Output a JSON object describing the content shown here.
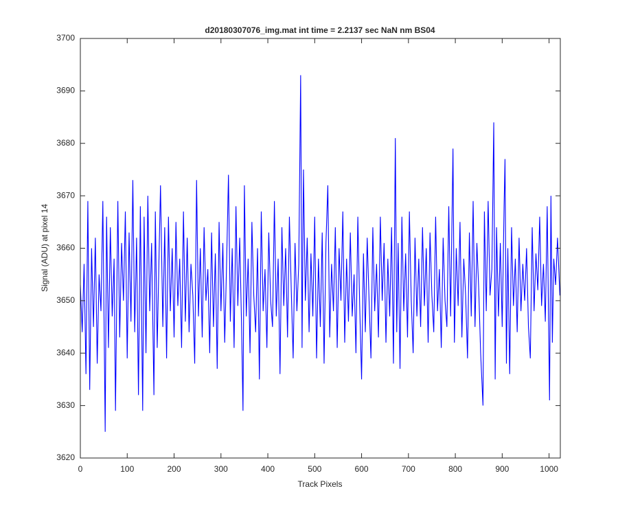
{
  "chart_data": {
    "type": "line",
    "title": "d20180307076_img.mat int time = 2.2137 sec  NaN nm BS04",
    "xlabel": "Track Pixels",
    "ylabel": "Signal (ADU) at pixel 14",
    "color": "#0000ff",
    "xlim": [
      0,
      1024
    ],
    "ylim": [
      3620,
      3700
    ],
    "xticks": [
      0,
      100,
      200,
      300,
      400,
      500,
      600,
      700,
      800,
      900,
      1000
    ],
    "yticks": [
      3620,
      3630,
      3640,
      3650,
      3660,
      3670,
      3680,
      3690,
      3700
    ],
    "grid": false,
    "x": [
      0,
      4,
      8,
      12,
      16,
      20,
      24,
      28,
      32,
      36,
      40,
      44,
      48,
      53,
      56,
      60,
      64,
      68,
      72,
      75,
      80,
      84,
      88,
      92,
      96,
      100,
      104,
      108,
      112,
      116,
      120,
      124,
      128,
      133,
      136,
      140,
      144,
      148,
      152,
      157,
      160,
      164,
      168,
      171,
      176,
      180,
      184,
      188,
      192,
      196,
      200,
      204,
      208,
      212,
      216,
      220,
      224,
      228,
      232,
      236,
      240,
      244,
      248,
      252,
      256,
      260,
      264,
      268,
      272,
      276,
      280,
      284,
      288,
      292,
      296,
      300,
      304,
      308,
      312,
      316,
      320,
      324,
      328,
      332,
      336,
      340,
      344,
      347,
      350,
      354,
      358,
      362,
      366,
      370,
      374,
      378,
      382,
      386,
      390,
      394,
      398,
      402,
      406,
      410,
      414,
      418,
      422,
      426,
      430,
      434,
      438,
      442,
      446,
      450,
      454,
      458,
      462,
      466,
      470,
      473,
      476,
      480,
      484,
      488,
      492,
      496,
      500,
      504,
      508,
      512,
      516,
      520,
      524,
      528,
      532,
      536,
      540,
      544,
      548,
      552,
      556,
      560,
      564,
      568,
      572,
      576,
      580,
      584,
      588,
      592,
      596,
      600,
      604,
      608,
      612,
      616,
      620,
      624,
      628,
      632,
      636,
      640,
      644,
      648,
      652,
      656,
      660,
      664,
      668,
      672,
      675,
      678,
      682,
      686,
      690,
      694,
      698,
      702,
      706,
      710,
      714,
      718,
      722,
      726,
      730,
      734,
      738,
      742,
      746,
      750,
      754,
      758,
      762,
      766,
      770,
      774,
      778,
      782,
      786,
      790,
      795,
      798,
      802,
      806,
      810,
      814,
      818,
      822,
      826,
      830,
      834,
      838,
      842,
      846,
      850,
      854,
      859,
      862,
      866,
      870,
      874,
      878,
      882,
      885,
      888,
      892,
      896,
      900,
      904,
      906,
      909,
      912,
      916,
      920,
      924,
      928,
      932,
      936,
      940,
      944,
      948,
      952,
      956,
      960,
      964,
      968,
      972,
      976,
      980,
      984,
      988,
      992,
      996,
      1001,
      1004,
      1007,
      1010,
      1014,
      1018,
      1023
    ],
    "values": [
      3653,
      3644,
      3657,
      3636,
      3669,
      3633,
      3660,
      3645,
      3662,
      3638,
      3655,
      3648,
      3669,
      3625,
      3666,
      3641,
      3664,
      3647,
      3658,
      3629,
      3669,
      3643,
      3661,
      3650,
      3667,
      3639,
      3663,
      3646,
      3673,
      3644,
      3662,
      3632,
      3668,
      3629,
      3666,
      3640,
      3670,
      3648,
      3661,
      3632,
      3667,
      3641,
      3659,
      3672,
      3645,
      3664,
      3639,
      3666,
      3648,
      3660,
      3643,
      3665,
      3649,
      3658,
      3641,
      3667,
      3646,
      3662,
      3644,
      3657,
      3651,
      3638,
      3673,
      3647,
      3660,
      3643,
      3664,
      3650,
      3656,
      3640,
      3663,
      3645,
      3659,
      3637,
      3665,
      3648,
      3661,
      3642,
      3657,
      3674,
      3646,
      3660,
      3641,
      3668,
      3649,
      3662,
      3645,
      3629,
      3672,
      3647,
      3658,
      3640,
      3665,
      3651,
      3644,
      3660,
      3635,
      3667,
      3648,
      3656,
      3641,
      3663,
      3650,
      3645,
      3669,
      3647,
      3658,
      3636,
      3664,
      3649,
      3660,
      3643,
      3666,
      3652,
      3639,
      3661,
      3648,
      3657,
      3693,
      3641,
      3675,
      3650,
      3662,
      3644,
      3659,
      3647,
      3666,
      3639,
      3658,
      3645,
      3663,
      3638,
      3661,
      3672,
      3643,
      3657,
      3648,
      3664,
      3641,
      3660,
      3650,
      3667,
      3642,
      3658,
      3646,
      3663,
      3647,
      3655,
      3640,
      3666,
      3649,
      3635,
      3659,
      3644,
      3662,
      3650,
      3639,
      3664,
      3648,
      3657,
      3643,
      3666,
      3650,
      3661,
      3642,
      3658,
      3647,
      3664,
      3638,
      3681,
      3644,
      3661,
      3637,
      3666,
      3648,
      3659,
      3643,
      3667,
      3650,
      3640,
      3662,
      3647,
      3658,
      3645,
      3664,
      3649,
      3660,
      3642,
      3663,
      3651,
      3644,
      3666,
      3648,
      3656,
      3641,
      3662,
      3650,
      3645,
      3668,
      3647,
      3679,
      3642,
      3660,
      3649,
      3665,
      3643,
      3658,
      3651,
      3639,
      3663,
      3647,
      3669,
      3645,
      3661,
      3652,
      3640,
      3630,
      3667,
      3648,
      3669,
      3651,
      3656,
      3684,
      3635,
      3664,
      3647,
      3661,
      3645,
      3668,
      3677,
      3638,
      3660,
      3636,
      3664,
      3649,
      3658,
      3644,
      3662,
      3648,
      3657,
      3650,
      3660,
      3645,
      3639,
      3664,
      3648,
      3659,
      3652,
      3666,
      3649,
      3657,
      3646,
      3668,
      3631,
      3670,
      3642,
      3658,
      3653,
      3662,
      3651
    ]
  }
}
